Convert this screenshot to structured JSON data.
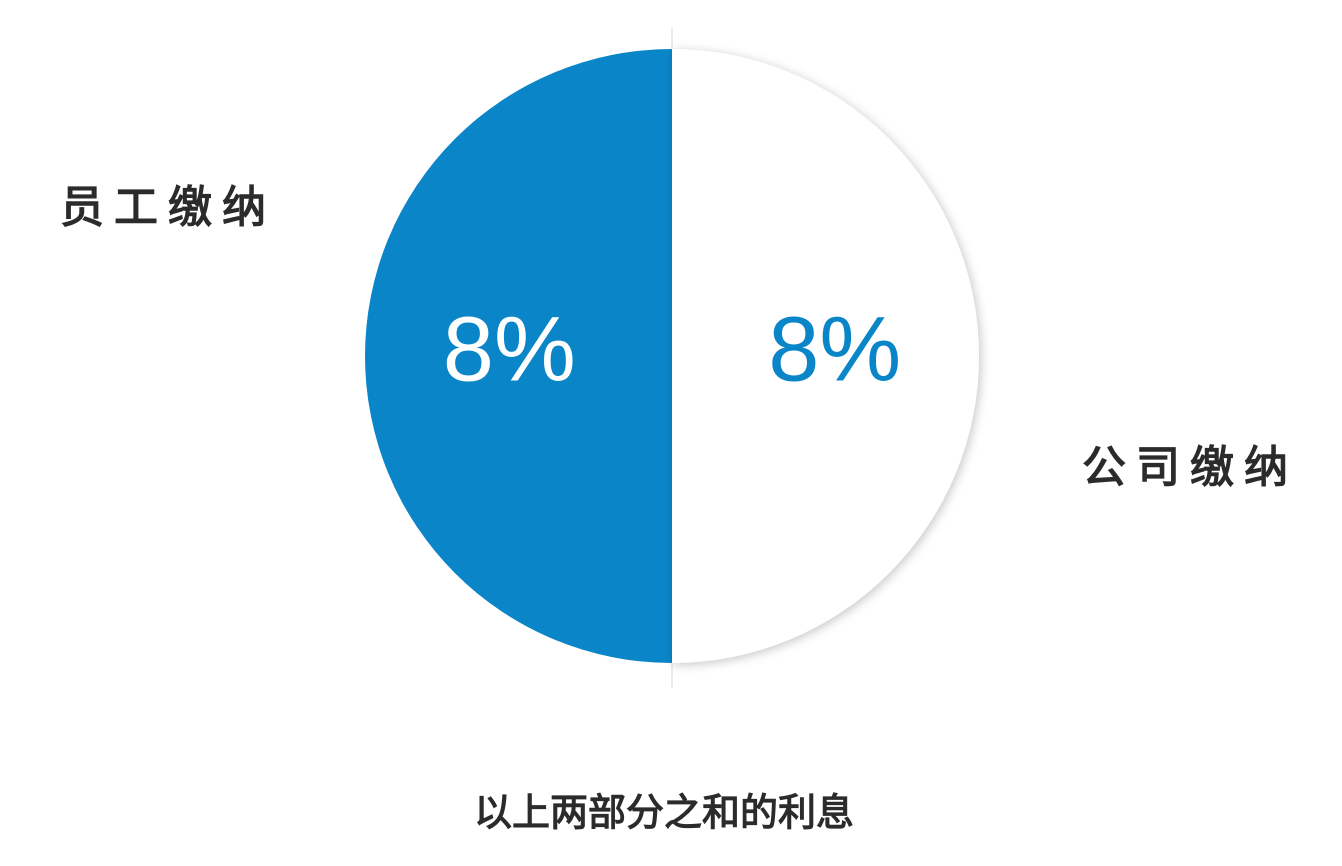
{
  "chart_data": {
    "type": "pie",
    "categories": [
      "员工缴纳",
      "公司缴纳"
    ],
    "values": [
      8,
      8
    ],
    "value_labels": [
      "8%",
      "8%"
    ],
    "colors": [
      "#0a86c8",
      "#ffffff"
    ],
    "annotation": "以上两部分之和的利息"
  }
}
